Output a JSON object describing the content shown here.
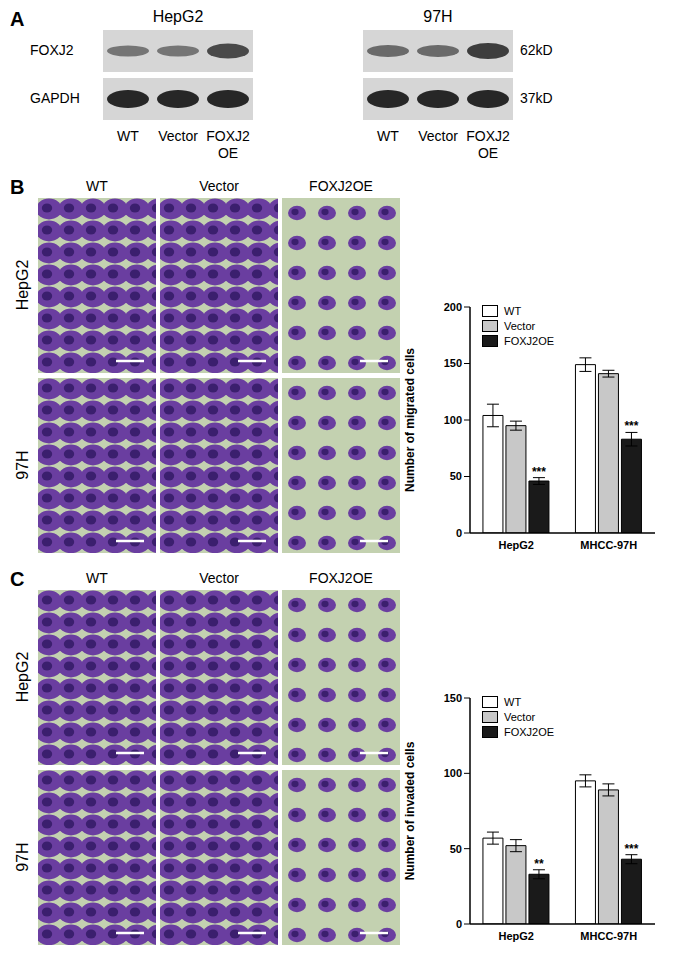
{
  "panels": {
    "A": {
      "label": "A",
      "cell_lines": [
        "HepG2",
        "97H"
      ],
      "proteins": [
        {
          "name": "FOXJ2",
          "size": "62kD"
        },
        {
          "name": "GAPDH",
          "size": "37kD"
        }
      ],
      "lanes": [
        "WT",
        "Vector",
        "FOXJ2 OE"
      ]
    },
    "B": {
      "label": "B",
      "columns": [
        "WT",
        "Vector",
        "FOXJ2OE"
      ],
      "rows": [
        "HepG2",
        "97H"
      ]
    },
    "C": {
      "label": "C",
      "columns": [
        "WT",
        "Vector",
        "FOXJ2OE"
      ],
      "rows": [
        "HepG2",
        "97H"
      ]
    }
  },
  "chart_data": [
    {
      "type": "bar",
      "y_label": "Number of migrated cells",
      "categories": [
        "HepG2",
        "MHCC-97H"
      ],
      "ylim": [
        0,
        200
      ],
      "yticks": [
        0,
        50,
        100,
        150,
        200
      ],
      "legend": "top-left",
      "series": [
        {
          "name": "WT",
          "color": "#ffffff",
          "values": [
            104,
            149
          ],
          "errors": [
            10,
            6
          ]
        },
        {
          "name": "Vector",
          "color": "#c8c8c8",
          "values": [
            95,
            141
          ],
          "errors": [
            4,
            3
          ]
        },
        {
          "name": "FOXJ2OE",
          "color": "#1a1a1a",
          "values": [
            46,
            83
          ],
          "errors": [
            3,
            6
          ],
          "annotations": [
            "***",
            "***"
          ]
        }
      ]
    },
    {
      "type": "bar",
      "y_label": "Number of invaded cells",
      "categories": [
        "HepG2",
        "MHCC-97H"
      ],
      "ylim": [
        0,
        150
      ],
      "yticks": [
        0,
        50,
        100,
        150
      ],
      "legend": "top-left",
      "series": [
        {
          "name": "WT",
          "color": "#ffffff",
          "values": [
            57,
            95
          ],
          "errors": [
            4,
            4
          ]
        },
        {
          "name": "Vector",
          "color": "#c8c8c8",
          "values": [
            52,
            89
          ],
          "errors": [
            4,
            4
          ]
        },
        {
          "name": "FOXJ2OE",
          "color": "#1a1a1a",
          "values": [
            33,
            43
          ],
          "errors": [
            3,
            3
          ],
          "annotations": [
            "**",
            "***"
          ]
        }
      ]
    }
  ]
}
